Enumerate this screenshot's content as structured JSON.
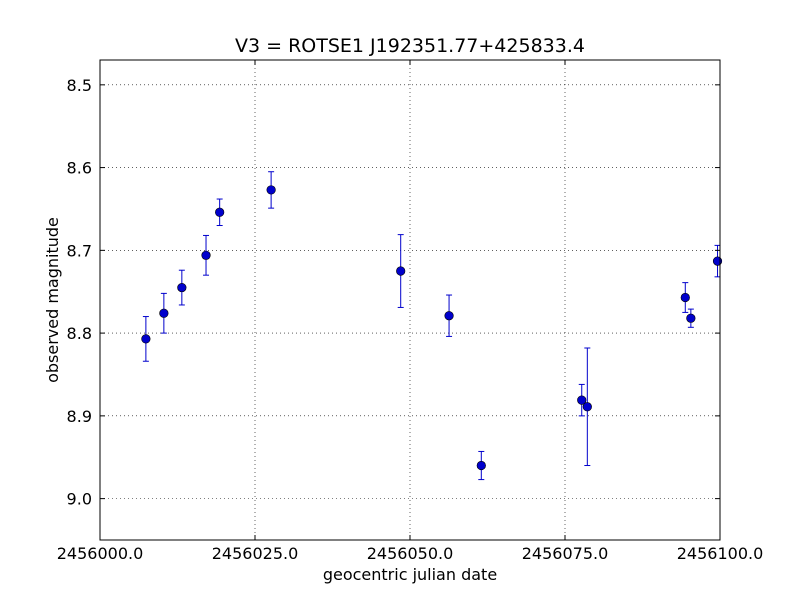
{
  "chart_data": {
    "type": "scatter",
    "title": "V3 = ROTSE1 J192351.77+425833.4",
    "xlabel": "geocentric julian date",
    "ylabel": "observed magnitude",
    "xlim": [
      2456000.0,
      2456100.0
    ],
    "ylim": [
      9.05,
      8.47
    ],
    "y_inverted": true,
    "grid": true,
    "x_ticks": [
      2456000.0,
      2456025.0,
      2456050.0,
      2456075.0,
      2456100.0
    ],
    "x_tick_labels": [
      "2456000.0",
      "2456025.0",
      "2456050.0",
      "2456075.0",
      "2456100.0"
    ],
    "y_ticks": [
      8.5,
      8.6,
      8.7,
      8.8,
      8.9,
      9.0
    ],
    "y_tick_labels": [
      "8.5",
      "8.6",
      "8.7",
      "8.8",
      "8.9",
      "9.0"
    ],
    "marker_color": "#0000cc",
    "points": [
      {
        "x": 2456007.4,
        "y": 8.807,
        "err": 0.027
      },
      {
        "x": 2456010.3,
        "y": 8.776,
        "err": 0.024
      },
      {
        "x": 2456013.2,
        "y": 8.745,
        "err": 0.021
      },
      {
        "x": 2456017.1,
        "y": 8.706,
        "err": 0.024
      },
      {
        "x": 2456019.3,
        "y": 8.654,
        "err": 0.016
      },
      {
        "x": 2456027.6,
        "y": 8.627,
        "err": 0.022
      },
      {
        "x": 2456048.5,
        "y": 8.725,
        "err": 0.044
      },
      {
        "x": 2456056.3,
        "y": 8.779,
        "err": 0.025
      },
      {
        "x": 2456061.5,
        "y": 8.96,
        "err": 0.017
      },
      {
        "x": 2456077.7,
        "y": 8.881,
        "err": 0.019
      },
      {
        "x": 2456078.6,
        "y": 8.889,
        "err": 0.071
      },
      {
        "x": 2456094.4,
        "y": 8.757,
        "err": 0.018
      },
      {
        "x": 2456095.3,
        "y": 8.782,
        "err": 0.011
      },
      {
        "x": 2456099.6,
        "y": 8.713,
        "err": 0.019
      }
    ]
  }
}
